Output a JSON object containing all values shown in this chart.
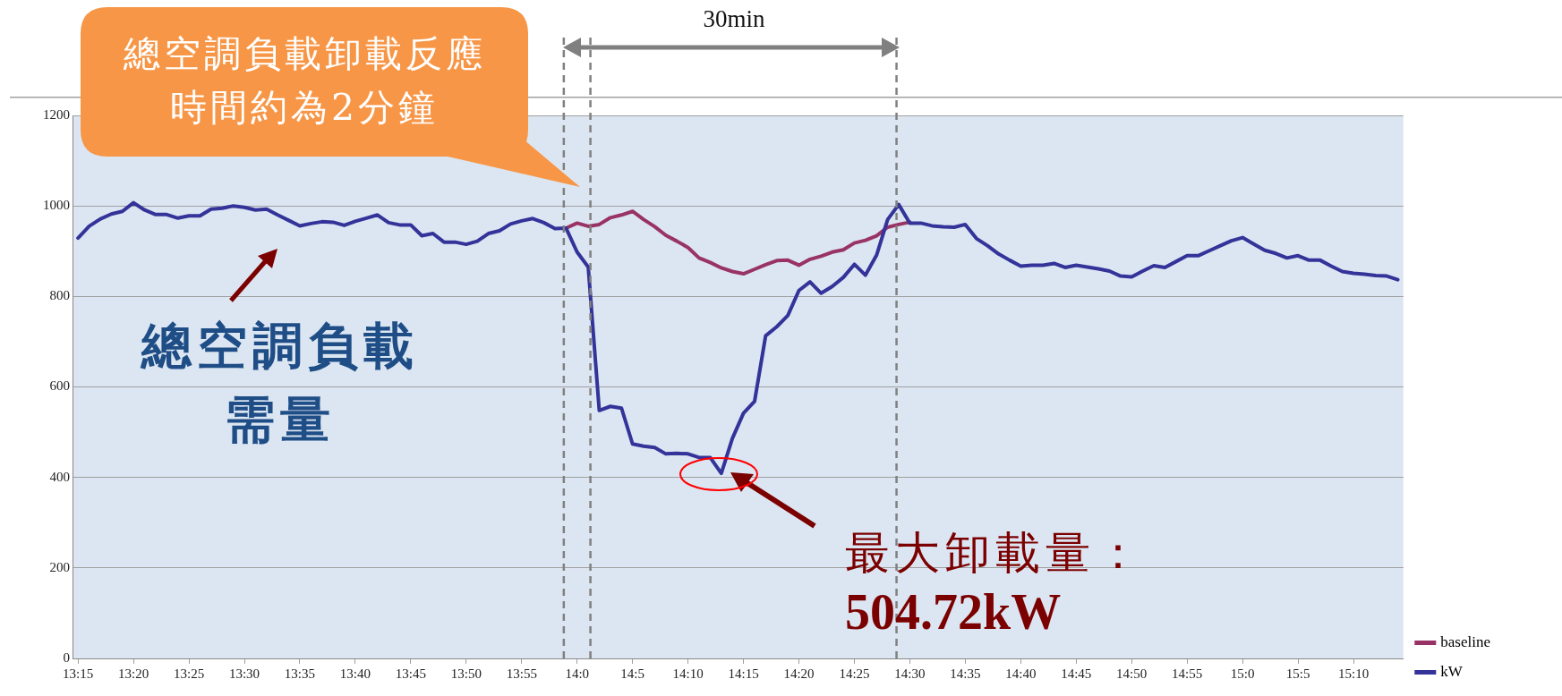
{
  "chart_data": {
    "type": "line",
    "x": [
      13.25,
      13.2667,
      13.2833,
      13.3,
      13.3167,
      13.3333,
      13.35,
      13.3667,
      13.3833,
      13.4,
      13.4167,
      13.4333,
      13.45,
      13.4667,
      13.4833,
      13.5,
      13.5167,
      13.5333,
      13.55,
      13.5667,
      13.5833,
      13.6,
      13.6167,
      13.6333,
      13.65,
      13.6667,
      13.6833,
      13.7,
      13.7167,
      13.7333,
      13.75,
      13.7667,
      13.7833,
      13.8,
      13.8167,
      13.8333,
      13.85,
      13.8667,
      13.8833,
      13.9,
      13.9167,
      13.9333,
      13.95,
      13.9667,
      13.9833,
      14.0,
      14.0167,
      14.0333,
      14.05,
      14.0667,
      14.0833,
      14.1,
      14.1167,
      14.1333,
      14.15,
      14.1667,
      14.1833,
      14.2,
      14.2167,
      14.2333,
      14.25,
      14.2667,
      14.2833,
      14.3,
      14.3167,
      14.3333,
      14.35,
      14.3667,
      14.3833,
      14.4,
      14.4167,
      14.4333,
      14.45,
      14.4667,
      14.4833,
      14.5,
      14.5167,
      14.5333,
      14.55,
      14.5667,
      14.5833,
      14.6,
      14.6167,
      14.6333,
      14.65,
      14.6667,
      14.6833,
      14.7,
      14.7167,
      14.7333,
      14.75,
      14.7667,
      14.7833,
      14.8,
      14.8167,
      14.8333,
      14.85,
      14.8667,
      14.8833,
      14.9,
      14.9167,
      14.9333,
      14.95,
      14.9667,
      14.9833,
      15.0,
      15.0167,
      15.0333,
      15.05,
      15.0667,
      15.0833,
      15.1,
      15.1167,
      15.1333,
      15.15,
      15.1667,
      15.1833,
      15.2,
      15.2167,
      15.2333
    ],
    "series": [
      {
        "name": "baseline",
        "color": "#993366",
        "values": [
          null,
          null,
          null,
          null,
          null,
          null,
          null,
          null,
          null,
          null,
          null,
          null,
          null,
          null,
          null,
          null,
          null,
          null,
          null,
          null,
          null,
          null,
          null,
          null,
          null,
          null,
          null,
          null,
          null,
          null,
          null,
          null,
          null,
          null,
          null,
          null,
          null,
          null,
          null,
          null,
          null,
          null,
          null,
          null,
          951,
          962,
          955,
          959,
          974,
          980,
          988,
          970,
          954,
          935,
          922,
          908,
          885,
          875,
          863,
          855,
          850,
          860,
          870,
          879,
          880,
          869,
          882,
          889,
          898,
          903,
          918,
          924,
          934,
          953,
          959,
          964,
          null,
          null,
          null,
          null,
          null,
          null,
          null,
          null,
          null,
          null,
          null,
          null,
          null,
          null,
          null,
          null,
          null,
          null,
          null,
          null,
          null,
          null,
          null,
          null,
          null,
          null,
          null,
          null,
          null,
          null,
          null,
          null,
          null,
          null,
          null,
          null,
          null,
          null,
          null,
          null,
          null,
          null,
          null,
          null
        ]
      },
      {
        "name": "kW",
        "color": "#333399",
        "values": [
          929,
          955,
          971,
          982,
          988,
          1007,
          991,
          981,
          981,
          973,
          978,
          978,
          993,
          995,
          1000,
          997,
          991,
          993,
          980,
          968,
          956,
          961,
          965,
          964,
          957,
          966,
          973,
          980,
          963,
          958,
          958,
          934,
          939,
          920,
          920,
          915,
          922,
          939,
          945,
          960,
          967,
          972,
          963,
          950,
          951,
          898,
          865,
          548,
          557,
          553,
          474,
          469,
          466,
          452,
          453,
          452,
          444,
          444,
          409,
          486,
          542,
          568,
          713,
          733,
          758,
          813,
          832,
          807,
          822,
          842,
          871,
          847,
          891,
          970,
          1003,
          962,
          962,
          956,
          954,
          953,
          959,
          928,
          912,
          894,
          880,
          867,
          869,
          869,
          873,
          864,
          869,
          865,
          861,
          856,
          845,
          843,
          856,
          868,
          864,
          877,
          890,
          890,
          901,
          912,
          923,
          930,
          916,
          902,
          895,
          885,
          890,
          880,
          880,
          867,
          855,
          851,
          849,
          846,
          845,
          837
        ]
      }
    ],
    "xlim": [
      13.2417,
      15.2417
    ],
    "xticks": [
      {
        "value": 13.25,
        "label": "13:15"
      },
      {
        "value": 13.3333,
        "label": "13:20"
      },
      {
        "value": 13.4167,
        "label": "13:25"
      },
      {
        "value": 13.5,
        "label": "13:30"
      },
      {
        "value": 13.5833,
        "label": "13:35"
      },
      {
        "value": 13.6667,
        "label": "13:40"
      },
      {
        "value": 13.75,
        "label": "13:45"
      },
      {
        "value": 13.8333,
        "label": "13:50"
      },
      {
        "value": 13.9167,
        "label": "13:55"
      },
      {
        "value": 14.0,
        "label": "14:0"
      },
      {
        "value": 14.0833,
        "label": "14:5"
      },
      {
        "value": 14.1667,
        "label": "14:10"
      },
      {
        "value": 14.25,
        "label": "14:15"
      },
      {
        "value": 14.3333,
        "label": "14:20"
      },
      {
        "value": 14.4167,
        "label": "14:25"
      },
      {
        "value": 14.5,
        "label": "14:30"
      },
      {
        "value": 14.5833,
        "label": "14:35"
      },
      {
        "value": 14.6667,
        "label": "14:40"
      },
      {
        "value": 14.75,
        "label": "14:45"
      },
      {
        "value": 14.8333,
        "label": "14:50"
      },
      {
        "value": 14.9167,
        "label": "14:55"
      },
      {
        "value": 15.0,
        "label": "15:0"
      },
      {
        "value": 15.0833,
        "label": "15:5"
      },
      {
        "value": 15.1667,
        "label": "15:10"
      }
    ],
    "ylim": [
      0,
      1200
    ],
    "yticks": [
      0,
      200,
      400,
      600,
      800,
      1000,
      1200
    ],
    "grid": "y",
    "legend": "bottom right",
    "marker": "none",
    "line_style": "solid",
    "ref_lines": [
      {
        "axis": "x",
        "value": 13.98,
        "color": "#808080",
        "line_style": "dashed"
      },
      {
        "axis": "x",
        "value": 14.02,
        "color": "#808080",
        "line_style": "dashed"
      },
      {
        "axis": "x",
        "value": 14.48,
        "color": "#808080",
        "line_style": "dashed"
      }
    ],
    "annotations": [
      "總空調負載卸載反應時間約為2分鐘",
      "30min",
      "總空調負載需量",
      "最大卸載量：",
      "504.72kW"
    ]
  }
}
